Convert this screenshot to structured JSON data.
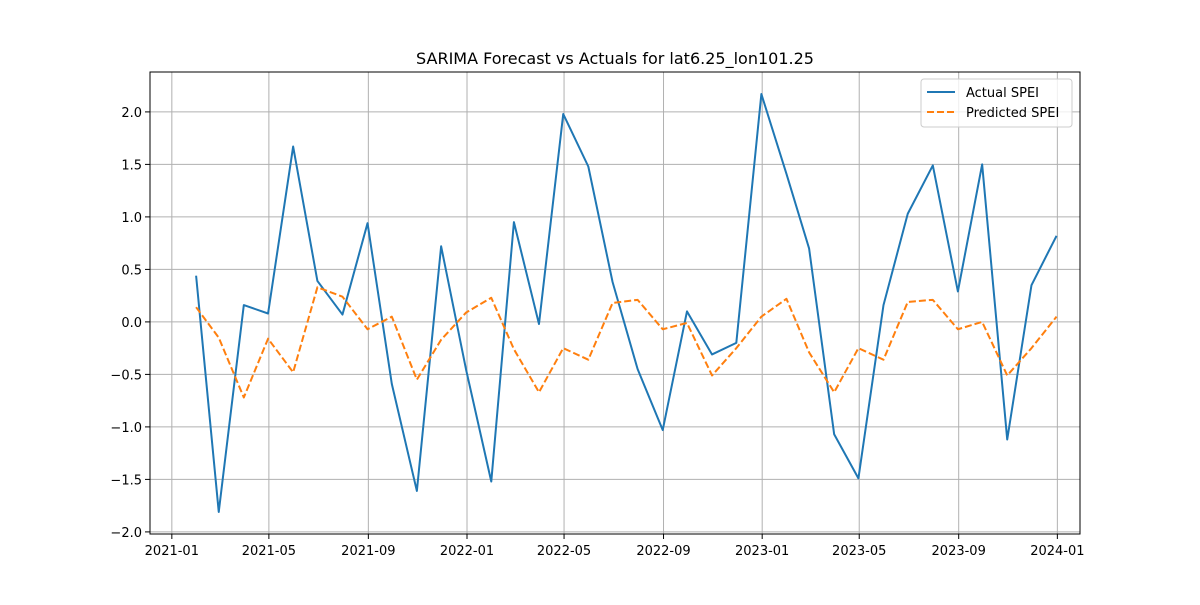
{
  "chart_data": {
    "type": "line",
    "title": "SARIMA Forecast vs Actuals for lat6.25_lon101.25",
    "xlabel": "",
    "ylabel": "",
    "x_start": "2021-01-01",
    "x_end": "2024-01-01",
    "xlim": [
      "2020-12-05",
      "2024-01-29"
    ],
    "ylim": [
      -2.02,
      2.38
    ],
    "grid": true,
    "legend_position": "top-right",
    "x_ticks": [
      "2021-01",
      "2021-05",
      "2021-09",
      "2022-01",
      "2022-05",
      "2022-09",
      "2023-01",
      "2023-05",
      "2023-09",
      "2024-01"
    ],
    "y_ticks": [
      -2.0,
      -1.5,
      -1.0,
      -0.5,
      0.0,
      0.5,
      1.0,
      1.5,
      2.0
    ],
    "y_tick_labels": [
      "−2.0",
      "−1.5",
      "−1.0",
      "−0.5",
      "0.0",
      "0.5",
      "1.0",
      "1.5",
      "2.0"
    ],
    "x": [
      "2021-01-31",
      "2021-02-28",
      "2021-03-31",
      "2021-04-30",
      "2021-05-31",
      "2021-06-30",
      "2021-07-31",
      "2021-08-31",
      "2021-09-30",
      "2021-10-31",
      "2021-11-30",
      "2021-12-31",
      "2022-01-31",
      "2022-02-28",
      "2022-03-31",
      "2022-04-30",
      "2022-05-31",
      "2022-06-30",
      "2022-07-31",
      "2022-08-31",
      "2022-09-30",
      "2022-10-31",
      "2022-11-30",
      "2022-12-31",
      "2023-01-31",
      "2023-02-28",
      "2023-03-31",
      "2023-04-30",
      "2023-05-31",
      "2023-06-30",
      "2023-07-31",
      "2023-08-31",
      "2023-09-30",
      "2023-10-31",
      "2023-11-30",
      "2023-12-31"
    ],
    "series": [
      {
        "name": "Actual SPEI",
        "color": "#1f77b4",
        "style": "solid",
        "values": [
          0.44,
          -1.81,
          0.16,
          0.08,
          1.67,
          0.39,
          0.07,
          0.94,
          -0.59,
          -1.61,
          0.72,
          -0.46,
          -1.52,
          0.95,
          -0.02,
          1.98,
          1.48,
          0.38,
          -0.45,
          -1.03,
          0.1,
          -0.31,
          -0.2,
          2.17,
          1.41,
          0.7,
          -1.07,
          -1.49,
          0.16,
          1.03,
          1.49,
          0.29,
          1.5,
          -1.12,
          0.35,
          0.82
        ]
      },
      {
        "name": "Predicted SPEI",
        "color": "#ff7f0e",
        "style": "dashed",
        "values": [
          0.14,
          -0.15,
          -0.72,
          -0.16,
          -0.48,
          0.33,
          0.24,
          -0.07,
          0.05,
          -0.55,
          -0.17,
          0.09,
          0.23,
          -0.26,
          -0.67,
          -0.25,
          -0.36,
          0.18,
          0.21,
          -0.07,
          -0.01,
          -0.51,
          -0.25,
          0.05,
          0.22,
          -0.29,
          -0.67,
          -0.25,
          -0.36,
          0.19,
          0.21,
          -0.07,
          0.0,
          -0.51,
          -0.25,
          0.05
        ]
      }
    ]
  }
}
